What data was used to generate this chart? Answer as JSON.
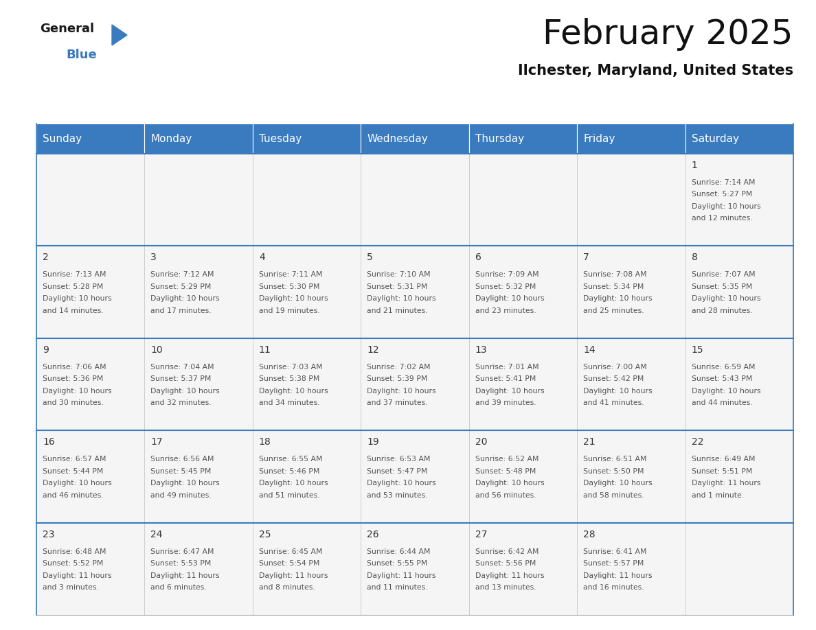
{
  "title": "February 2025",
  "subtitle": "Ilchester, Maryland, United States",
  "header_color": "#3a7abf",
  "header_text_color": "#ffffff",
  "cell_bg_color": "#f5f5f5",
  "day_headers": [
    "Sunday",
    "Monday",
    "Tuesday",
    "Wednesday",
    "Thursday",
    "Friday",
    "Saturday"
  ],
  "days": [
    {
      "day": 1,
      "col": 6,
      "row": 0,
      "sunrise": "7:14 AM",
      "sunset": "5:27 PM",
      "daylight": "10 hours\nand 12 minutes."
    },
    {
      "day": 2,
      "col": 0,
      "row": 1,
      "sunrise": "7:13 AM",
      "sunset": "5:28 PM",
      "daylight": "10 hours\nand 14 minutes."
    },
    {
      "day": 3,
      "col": 1,
      "row": 1,
      "sunrise": "7:12 AM",
      "sunset": "5:29 PM",
      "daylight": "10 hours\nand 17 minutes."
    },
    {
      "day": 4,
      "col": 2,
      "row": 1,
      "sunrise": "7:11 AM",
      "sunset": "5:30 PM",
      "daylight": "10 hours\nand 19 minutes."
    },
    {
      "day": 5,
      "col": 3,
      "row": 1,
      "sunrise": "7:10 AM",
      "sunset": "5:31 PM",
      "daylight": "10 hours\nand 21 minutes."
    },
    {
      "day": 6,
      "col": 4,
      "row": 1,
      "sunrise": "7:09 AM",
      "sunset": "5:32 PM",
      "daylight": "10 hours\nand 23 minutes."
    },
    {
      "day": 7,
      "col": 5,
      "row": 1,
      "sunrise": "7:08 AM",
      "sunset": "5:34 PM",
      "daylight": "10 hours\nand 25 minutes."
    },
    {
      "day": 8,
      "col": 6,
      "row": 1,
      "sunrise": "7:07 AM",
      "sunset": "5:35 PM",
      "daylight": "10 hours\nand 28 minutes."
    },
    {
      "day": 9,
      "col": 0,
      "row": 2,
      "sunrise": "7:06 AM",
      "sunset": "5:36 PM",
      "daylight": "10 hours\nand 30 minutes."
    },
    {
      "day": 10,
      "col": 1,
      "row": 2,
      "sunrise": "7:04 AM",
      "sunset": "5:37 PM",
      "daylight": "10 hours\nand 32 minutes."
    },
    {
      "day": 11,
      "col": 2,
      "row": 2,
      "sunrise": "7:03 AM",
      "sunset": "5:38 PM",
      "daylight": "10 hours\nand 34 minutes."
    },
    {
      "day": 12,
      "col": 3,
      "row": 2,
      "sunrise": "7:02 AM",
      "sunset": "5:39 PM",
      "daylight": "10 hours\nand 37 minutes."
    },
    {
      "day": 13,
      "col": 4,
      "row": 2,
      "sunrise": "7:01 AM",
      "sunset": "5:41 PM",
      "daylight": "10 hours\nand 39 minutes."
    },
    {
      "day": 14,
      "col": 5,
      "row": 2,
      "sunrise": "7:00 AM",
      "sunset": "5:42 PM",
      "daylight": "10 hours\nand 41 minutes."
    },
    {
      "day": 15,
      "col": 6,
      "row": 2,
      "sunrise": "6:59 AM",
      "sunset": "5:43 PM",
      "daylight": "10 hours\nand 44 minutes."
    },
    {
      "day": 16,
      "col": 0,
      "row": 3,
      "sunrise": "6:57 AM",
      "sunset": "5:44 PM",
      "daylight": "10 hours\nand 46 minutes."
    },
    {
      "day": 17,
      "col": 1,
      "row": 3,
      "sunrise": "6:56 AM",
      "sunset": "5:45 PM",
      "daylight": "10 hours\nand 49 minutes."
    },
    {
      "day": 18,
      "col": 2,
      "row": 3,
      "sunrise": "6:55 AM",
      "sunset": "5:46 PM",
      "daylight": "10 hours\nand 51 minutes."
    },
    {
      "day": 19,
      "col": 3,
      "row": 3,
      "sunrise": "6:53 AM",
      "sunset": "5:47 PM",
      "daylight": "10 hours\nand 53 minutes."
    },
    {
      "day": 20,
      "col": 4,
      "row": 3,
      "sunrise": "6:52 AM",
      "sunset": "5:48 PM",
      "daylight": "10 hours\nand 56 minutes."
    },
    {
      "day": 21,
      "col": 5,
      "row": 3,
      "sunrise": "6:51 AM",
      "sunset": "5:50 PM",
      "daylight": "10 hours\nand 58 minutes."
    },
    {
      "day": 22,
      "col": 6,
      "row": 3,
      "sunrise": "6:49 AM",
      "sunset": "5:51 PM",
      "daylight": "11 hours\nand 1 minute."
    },
    {
      "day": 23,
      "col": 0,
      "row": 4,
      "sunrise": "6:48 AM",
      "sunset": "5:52 PM",
      "daylight": "11 hours\nand 3 minutes."
    },
    {
      "day": 24,
      "col": 1,
      "row": 4,
      "sunrise": "6:47 AM",
      "sunset": "5:53 PM",
      "daylight": "11 hours\nand 6 minutes."
    },
    {
      "day": 25,
      "col": 2,
      "row": 4,
      "sunrise": "6:45 AM",
      "sunset": "5:54 PM",
      "daylight": "11 hours\nand 8 minutes."
    },
    {
      "day": 26,
      "col": 3,
      "row": 4,
      "sunrise": "6:44 AM",
      "sunset": "5:55 PM",
      "daylight": "11 hours\nand 11 minutes."
    },
    {
      "day": 27,
      "col": 4,
      "row": 4,
      "sunrise": "6:42 AM",
      "sunset": "5:56 PM",
      "daylight": "11 hours\nand 13 minutes."
    },
    {
      "day": 28,
      "col": 5,
      "row": 4,
      "sunrise": "6:41 AM",
      "sunset": "5:57 PM",
      "daylight": "11 hours\nand 16 minutes."
    }
  ],
  "num_rows": 5,
  "num_cols": 7,
  "logo_text_general": "General",
  "logo_text_blue": "Blue",
  "logo_triangle_color": "#3a7abf",
  "border_color": "#3a7abf",
  "cell_text_color": "#555555",
  "day_num_color": "#333333",
  "title_fontsize": 36,
  "subtitle_fontsize": 15,
  "header_fontsize": 11,
  "day_num_fontsize": 10,
  "cell_fontsize": 7.8
}
